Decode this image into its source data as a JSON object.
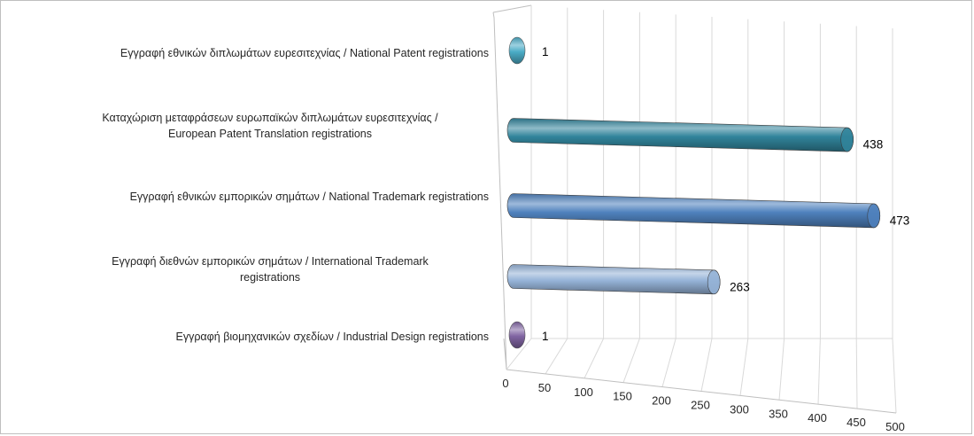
{
  "chart_data": {
    "type": "bar",
    "orientation": "horizontal",
    "style": "3d-cylinder",
    "categories": [
      "Εγγραφή εθνικών διπλωμάτων ευρεσιτεχνίας / National Patent registrations",
      "Καταχώριση μεταφράσεων ευρωπαϊκών διπλωμάτων ευρεσιτεχνίας / European Patent Translation registrations",
      "Εγγραφή εθνικών εμπορικών σημάτων / National Trademark registrations",
      "Εγγραφή διεθνών εμπορικών σημάτων / International Trademark registrations",
      "Εγγραφή βιομηχανικών σχεδίων / Industrial Design registrations"
    ],
    "category_lines": [
      [
        "Εγγραφή  εθνικών διπλωμάτων ευρεσιτεχνίας / National Patent registrations"
      ],
      [
        "Καταχώριση μεταφράσεων ευρωπαϊκών διπλωμάτων ευρεσιτεχνίας /",
        "European Patent Translation registrations"
      ],
      [
        "Εγγραφή  εθνικών εμπορικών σημάτων / National Trademark registrations"
      ],
      [
        "Εγγραφή  διεθνών εμπορικών σημάτων / International Trademark",
        "registrations"
      ],
      [
        "Εγγραφή  βιομηχανικών σχεδίων / Industrial Design registrations"
      ]
    ],
    "values": [
      1,
      438,
      473,
      263,
      1
    ],
    "data_labels": [
      "1",
      "438",
      "473",
      "263",
      "1"
    ],
    "colors": [
      "#4bacc6",
      "#31849b",
      "#4f81bd",
      "#95b3d7",
      "#8064a2"
    ],
    "xlim": [
      0,
      500
    ],
    "xticks": [
      "0",
      "50",
      "100",
      "150",
      "200",
      "250",
      "300",
      "350",
      "400",
      "450",
      "500"
    ],
    "grid": true,
    "legend": "none",
    "title": "",
    "xlabel": "",
    "ylabel": ""
  }
}
